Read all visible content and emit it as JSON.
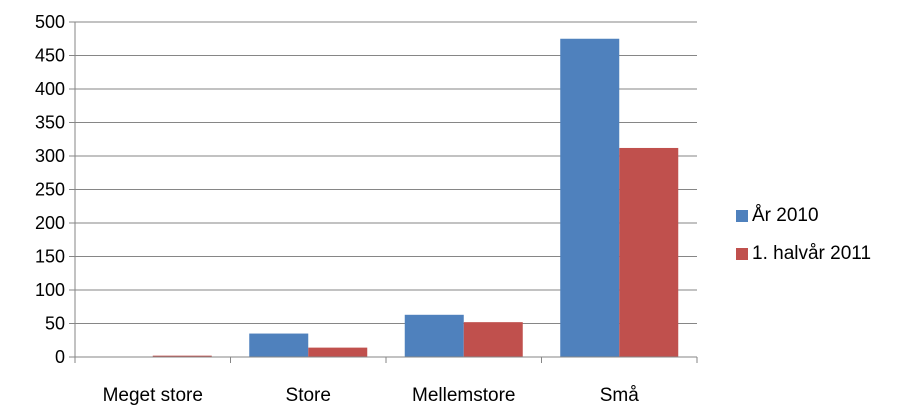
{
  "chart_data": {
    "type": "bar",
    "categories": [
      "Meget store",
      "Store",
      "Mellemstore",
      "Små"
    ],
    "series": [
      {
        "name": "År 2010",
        "values": [
          0,
          35,
          63,
          475
        ],
        "color": "#4F81BD"
      },
      {
        "name": "1. halvår 2011",
        "values": [
          2,
          14,
          52,
          312
        ],
        "color": "#C0504D"
      }
    ],
    "ylim": [
      0,
      500
    ],
    "yticks": [
      "0",
      "50",
      "100",
      "150",
      "200",
      "250",
      "300",
      "350",
      "400",
      "450",
      "500"
    ],
    "grid": true,
    "legend_position": "right"
  }
}
